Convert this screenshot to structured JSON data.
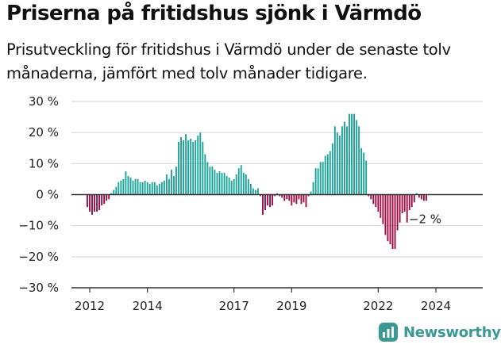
{
  "title": "Priserna på fritidshus sjönk i Värmdö",
  "subtitle": "Prisutveckling för fritidshus i Värmdö under de senaste tolv månaderna, jämfört med tolv månader tidigare.",
  "brand": {
    "name": "Newsworthy",
    "icon": "newsworthy-logo-icon"
  },
  "colors": {
    "positive": "#1aa398",
    "negative": "#9c0a44",
    "grid": "#d4d4d4",
    "zero_line": "#333333",
    "text": "#222222",
    "brand": "#3a9a93"
  },
  "chart_data": {
    "type": "bar",
    "ylabel": "",
    "xlabel": "",
    "ylim": [
      -30,
      30
    ],
    "y_ticks": [
      30,
      20,
      10,
      0,
      -10,
      -20,
      -30
    ],
    "y_tick_labels": [
      "30 %",
      "20 %",
      "10 %",
      "0 %",
      "−10 %",
      "−20 %",
      "−30 %"
    ],
    "x_ticks": [
      {
        "label": "2012",
        "year": 2012.0
      },
      {
        "label": "2014",
        "year": 2014.0
      },
      {
        "label": "2017",
        "year": 2017.0
      },
      {
        "label": "2019",
        "year": 2019.0
      },
      {
        "label": "2022",
        "year": 2022.0
      },
      {
        "label": "2024",
        "year": 2024.0
      }
    ],
    "start": "2011-12",
    "frequency": "monthly",
    "end_label": "−2 %",
    "values": [
      -4,
      -5.5,
      -6.5,
      -5.5,
      -5.5,
      -5,
      -3.5,
      -3,
      -2,
      -1.5,
      0.5,
      1.5,
      2.5,
      4,
      4.5,
      5,
      7.5,
      6,
      5.5,
      4.5,
      5,
      5,
      4,
      4,
      4.5,
      4,
      3.5,
      4,
      4,
      3,
      3.5,
      4,
      4.5,
      6.5,
      5,
      8,
      6,
      9,
      17,
      18.5,
      17.5,
      19.5,
      17.5,
      18,
      17,
      17.5,
      19,
      20,
      17,
      13,
      10.5,
      9,
      9,
      8,
      7,
      7.5,
      7,
      7,
      6,
      5.5,
      4.5,
      5,
      6.5,
      8.5,
      9.5,
      7,
      6.5,
      5,
      3.5,
      2,
      1.5,
      2,
      -0.5,
      -6.5,
      -5,
      -3.5,
      -4,
      -3.5,
      -0.5,
      0.5,
      -0.5,
      -1,
      -2,
      -1.5,
      -2,
      -3.5,
      -2.5,
      -3,
      -1.5,
      -3,
      -2.5,
      -4,
      -0.5,
      1,
      4,
      8.5,
      8.5,
      10.5,
      10.5,
      12.5,
      13,
      14,
      16.5,
      22,
      20,
      19,
      22,
      23.5,
      22,
      26,
      26,
      26,
      24,
      22,
      15,
      13.5,
      11,
      -0.5,
      -1.5,
      -3,
      -4,
      -5.5,
      -7.5,
      -9.5,
      -13,
      -15,
      -16,
      -17.5,
      -17.5,
      -11.5,
      -9,
      -6,
      -5.5,
      -9,
      -5,
      -4,
      -2.5,
      0.5,
      -1,
      -1.5,
      -2,
      -2
    ]
  }
}
